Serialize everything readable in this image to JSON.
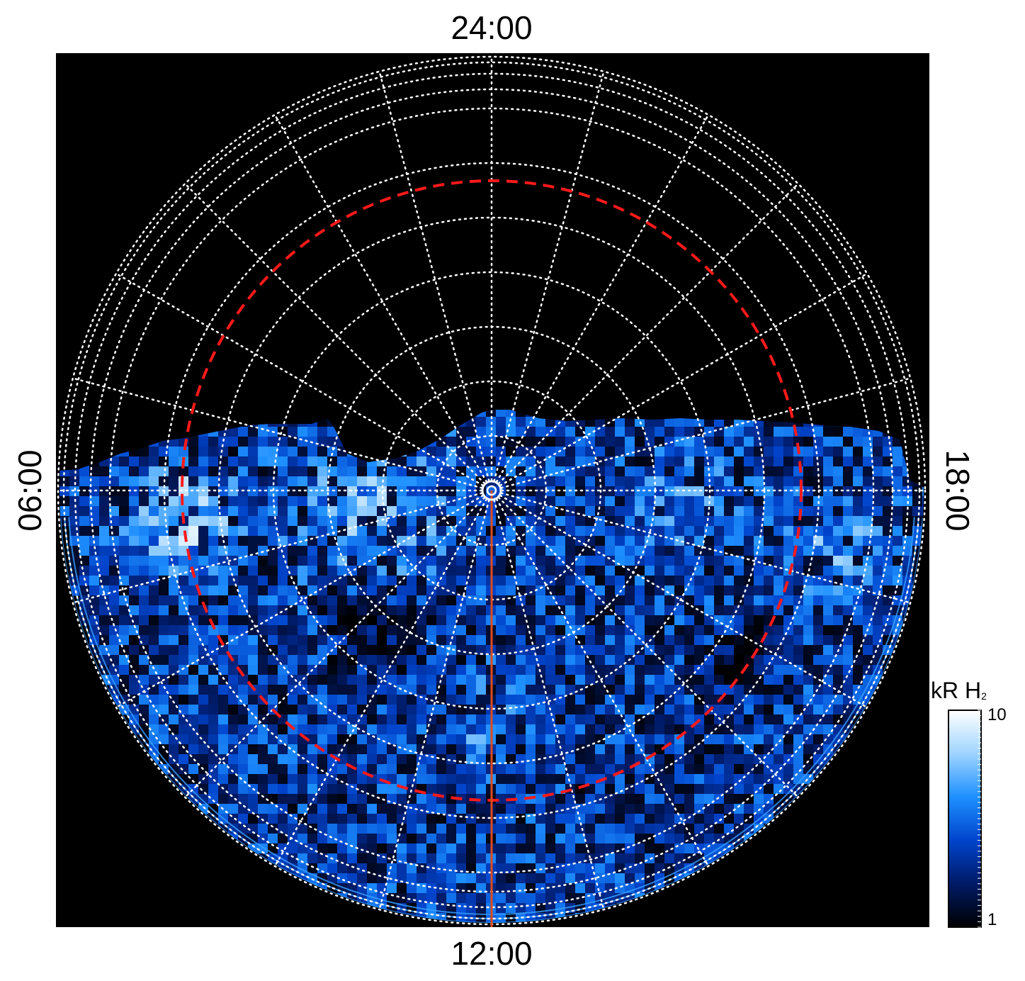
{
  "chart_data": {
    "type": "heatmap",
    "projection": "polar",
    "local_time_labels": {
      "top": "24:00",
      "bottom": "12:00",
      "left": "06:00",
      "right": "18:00"
    },
    "colorbar": {
      "title": "kR H",
      "title_subscript": "2",
      "min": 1,
      "max": 10,
      "scale": "log",
      "tick_labels": [
        "10",
        "1"
      ],
      "colors": [
        "#000000",
        "#001a66",
        "#0044cc",
        "#1e90ff",
        "#9fd4ff",
        "#ffffff"
      ]
    },
    "grid": true,
    "colors": {
      "background": "#000000",
      "grid": "#ffffff",
      "reference_circle": "#ff1a1a",
      "noon_meridian": "#e04a1a"
    },
    "emission_coverage": "southern half (dayside toward 12:00)"
  }
}
